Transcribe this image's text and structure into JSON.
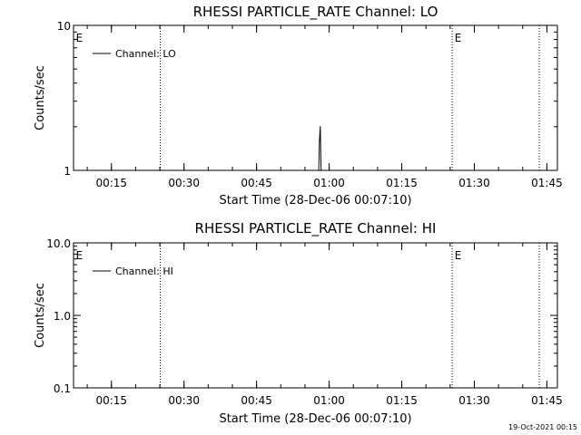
{
  "footer": "19-Oct-2021 00:15",
  "chart_data": [
    {
      "type": "line",
      "title": "RHESSI PARTICLE_RATE Channel: LO",
      "xlabel": "Start Time (28-Dec-06 00:07:10)",
      "ylabel": "Counts/sec",
      "yscale": "log",
      "xlim": [
        "00:07:10",
        "01:47:10"
      ],
      "ylim": [
        1,
        10
      ],
      "x_ticks": [
        "00:15",
        "00:30",
        "00:45",
        "01:00",
        "01:15",
        "01:30",
        "01:45"
      ],
      "y_ticks": [
        {
          "value": 1,
          "label": "1"
        },
        {
          "value": 10,
          "label": "10"
        }
      ],
      "legend": {
        "position": "top-left",
        "entries": [
          "Channel: LO"
        ]
      },
      "vertical_lines": [
        "00:25:05",
        "01:25:25",
        "01:43:25"
      ],
      "markers": [
        {
          "time": "00:07:40",
          "label": "E"
        },
        {
          "time": "01:25:55",
          "label": "E"
        }
      ],
      "series": [
        {
          "name": "Channel: LO",
          "points": [
            {
              "x": "00:57:50",
              "y": 1
            },
            {
              "x": "00:58:00",
              "y": 1.6
            },
            {
              "x": "00:58:10",
              "y": 2.0
            },
            {
              "x": "00:58:20",
              "y": 1
            }
          ]
        }
      ]
    },
    {
      "type": "line",
      "title": "RHESSI PARTICLE_RATE Channel: HI",
      "xlabel": "Start Time (28-Dec-06 00:07:10)",
      "ylabel": "Counts/sec",
      "yscale": "log",
      "xlim": [
        "00:07:10",
        "01:47:10"
      ],
      "ylim": [
        0.1,
        10
      ],
      "x_ticks": [
        "00:15",
        "00:30",
        "00:45",
        "01:00",
        "01:15",
        "01:30",
        "01:45"
      ],
      "y_ticks": [
        {
          "value": 0.1,
          "label": "0.1"
        },
        {
          "value": 1,
          "label": "1.0"
        },
        {
          "value": 10,
          "label": "10.0"
        }
      ],
      "legend": {
        "position": "top-left",
        "entries": [
          "Channel: HI"
        ]
      },
      "vertical_lines": [
        "00:25:05",
        "01:25:25",
        "01:43:25"
      ],
      "markers": [
        {
          "time": "00:07:40",
          "label": "E"
        },
        {
          "time": "01:25:55",
          "label": "E"
        }
      ],
      "series": [
        {
          "name": "Channel: HI",
          "points": []
        }
      ]
    }
  ]
}
